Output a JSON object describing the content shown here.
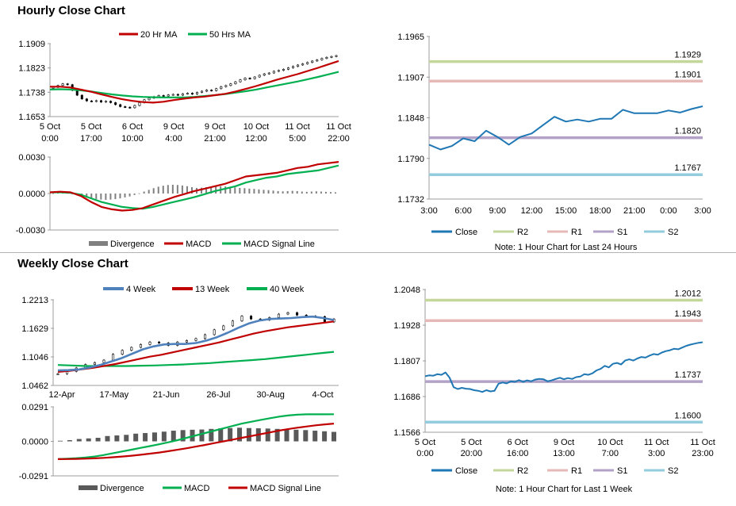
{
  "sections": {
    "hourly_title": "Hourly Close Chart",
    "weekly_title": "Weekly Close Chart"
  },
  "chart_data": [
    {
      "id": "hourly_price",
      "type": "candlestick",
      "title": "",
      "y_ticks": [
        "1.1909",
        "1.1823",
        "1.1738",
        "1.1653"
      ],
      "ylim": [
        1.1653,
        1.1909
      ],
      "x_tick_labels": [
        [
          "5 Oct",
          "0:00"
        ],
        [
          "5 Oct",
          "17:00"
        ],
        [
          "6 Oct",
          "10:00"
        ],
        [
          "9 Oct",
          "4:00"
        ],
        [
          "9 Oct",
          "21:00"
        ],
        [
          "10 Oct",
          "12:00"
        ],
        [
          "11 Oct",
          "5:00"
        ],
        [
          "11 Oct",
          "22:00"
        ]
      ],
      "legend": [
        "20 Hr MA",
        "50 Hrs MA"
      ],
      "colors": {
        "ma_short": "#c00000",
        "ma_long": "#00b050",
        "candle": "#000000"
      },
      "close": [
        1.1756,
        1.1762,
        1.1768,
        1.1765,
        1.1745,
        1.1728,
        1.1715,
        1.1708,
        1.1706,
        1.1709,
        1.1704,
        1.1707,
        1.1702,
        1.1695,
        1.1688,
        1.1686,
        1.1684,
        1.1692,
        1.1702,
        1.1712,
        1.1718,
        1.1723,
        1.1727,
        1.1725,
        1.1729,
        1.1731,
        1.1728,
        1.1733,
        1.1735,
        1.1732,
        1.1738,
        1.1742,
        1.1746,
        1.1744,
        1.1751,
        1.1758,
        1.1762,
        1.1768,
        1.1775,
        1.1782,
        1.1788,
        1.1786,
        1.1792,
        1.1798,
        1.1803,
        1.1806,
        1.1812,
        1.1815,
        1.1819,
        1.1824,
        1.1829,
        1.1834,
        1.1838,
        1.1843,
        1.1848,
        1.1852,
        1.1857,
        1.1861,
        1.1864,
        1.1867
      ],
      "series": [
        {
          "name": "20 Hr MA",
          "values": [
            1.1758,
            1.1758,
            1.1755,
            1.1748,
            1.174,
            1.1731,
            1.1722,
            1.1714,
            1.1708,
            1.1704,
            1.1702,
            1.1705,
            1.1711,
            1.1716,
            1.172,
            1.1723,
            1.1728,
            1.1733,
            1.1741,
            1.175,
            1.176,
            1.1771,
            1.1782,
            1.1792,
            1.1802,
            1.1813,
            1.1824,
            1.1836,
            1.1848
          ]
        },
        {
          "name": "50 Hrs MA",
          "values": [
            1.1748,
            1.1749,
            1.1748,
            1.1745,
            1.1741,
            1.1736,
            1.1731,
            1.1727,
            1.1724,
            1.1722,
            1.1721,
            1.172,
            1.172,
            1.172,
            1.1722,
            1.1725,
            1.1728,
            1.1732,
            1.1737,
            1.1742,
            1.1748,
            1.1755,
            1.1762,
            1.1769,
            1.1776,
            1.1784,
            1.1792,
            1.1801,
            1.181
          ]
        }
      ]
    },
    {
      "id": "hourly_macd",
      "type": "line",
      "y_ticks": [
        "0.0030",
        "0.0000",
        "-0.0030"
      ],
      "ylim": [
        -0.003,
        0.003
      ],
      "legend": [
        "Divergence",
        "MACD",
        "MACD Signal Line"
      ],
      "colors": {
        "divergence": "#808080",
        "macd": "#c00000",
        "signal": "#00b050"
      },
      "divergence": [
        2e-05,
        5e-05,
        6e-05,
        4e-05,
        -5e-05,
        -0.00015,
        -0.00025,
        -0.00034,
        -0.0004,
        -0.00045,
        -0.0005,
        -0.00052,
        -0.0005,
        -0.00046,
        -0.0004,
        -0.00032,
        -0.00024,
        -0.00012,
        2e-05,
        0.00016,
        0.0003,
        0.00044,
        0.00056,
        0.00064,
        0.0007,
        0.00072,
        0.0007,
        0.00066,
        0.0006,
        0.00052,
        0.00046,
        0.00048,
        0.00052,
        0.00056,
        0.00058,
        0.0006,
        0.00058,
        0.00054,
        0.0005,
        0.00046,
        0.00044,
        0.0004,
        0.00038,
        0.00034,
        0.0003,
        0.00028,
        0.00024,
        0.0002,
        0.00018,
        0.0002,
        0.00022,
        0.0002,
        0.00016,
        0.00014,
        0.00016,
        0.00018,
        0.00016,
        0.00014,
        0.00012,
        0.0001
      ],
      "series": [
        {
          "name": "MACD",
          "values": [
            0.0001,
            0.00015,
            0.0001,
            -0.0002,
            -0.0007,
            -0.0011,
            -0.0013,
            -0.0014,
            -0.00135,
            -0.0012,
            -0.0009,
            -0.0006,
            -0.0003,
            -5e-05,
            0.0002,
            0.0004,
            0.0006,
            0.0008,
            0.0011,
            0.0014,
            0.0015,
            0.0016,
            0.0017,
            0.0019,
            0.0021,
            0.0022,
            0.0024,
            0.0025,
            0.0026
          ]
        },
        {
          "name": "MACD Signal Line",
          "values": [
            0.0001,
            0.0001,
            5e-05,
            -0.0001,
            -0.0004,
            -0.0007,
            -0.0009,
            -0.0011,
            -0.0012,
            -0.00125,
            -0.0011,
            -0.0009,
            -0.0007,
            -0.0005,
            -0.0003,
            -5e-05,
            0.0002,
            0.0004,
            0.0006,
            0.0009,
            0.0011,
            0.0013,
            0.0014,
            0.0016,
            0.0017,
            0.0018,
            0.0019,
            0.0021,
            0.0023
          ]
        }
      ]
    },
    {
      "id": "hourly_levels",
      "type": "line",
      "y_ticks": [
        "1.1965",
        "1.1907",
        "1.1848",
        "1.1790",
        "1.1732"
      ],
      "ylim": [
        1.1732,
        1.1965
      ],
      "x_ticks": [
        "3:00",
        "6:00",
        "9:00",
        "12:00",
        "15:00",
        "18:00",
        "21:00",
        "0:00",
        "3:00"
      ],
      "legend": [
        "Close",
        "R2",
        "R1",
        "S1",
        "S2"
      ],
      "note": "Note: 1 Hour Chart for Last 24 Hours",
      "colors": {
        "close": "#1f77b4",
        "R2": "#c4d79b",
        "R1": "#e6b9b8",
        "S1": "#b3a2c7",
        "S2": "#93cddd"
      },
      "levels": {
        "R2": 1.1929,
        "R1": 1.1901,
        "S1": 1.182,
        "S2": 1.1767
      },
      "level_labels": {
        "R2": "1.1929",
        "R1": "1.1901",
        "S1": "1.1820",
        "S2": "1.1767"
      },
      "series": [
        {
          "name": "Close",
          "values": [
            1.181,
            1.1803,
            1.1808,
            1.1819,
            1.1815,
            1.183,
            1.1821,
            1.181,
            1.1821,
            1.1826,
            1.1838,
            1.185,
            1.1843,
            1.1846,
            1.1843,
            1.1847,
            1.1847,
            1.186,
            1.1855,
            1.1855,
            1.1855,
            1.1859,
            1.1856,
            1.1861,
            1.1865
          ]
        }
      ]
    },
    {
      "id": "weekly_price",
      "type": "candlestick",
      "y_ticks": [
        "1.2213",
        "1.1629",
        "1.1046",
        "1.0462"
      ],
      "ylim": [
        1.0462,
        1.2213
      ],
      "x_ticks": [
        "12-Apr",
        "17-May",
        "21-Jun",
        "26-Jul",
        "30-Aug",
        "4-Oct"
      ],
      "legend": [
        "4 Week",
        "13 Week",
        "40 Week"
      ],
      "colors": {
        "w4": "#4f81bd",
        "w13": "#c00000",
        "w40": "#00b050",
        "candle": "#000000"
      },
      "close": [
        1.07,
        1.075,
        1.082,
        1.089,
        1.093,
        1.098,
        1.11,
        1.118,
        1.124,
        1.13,
        1.135,
        1.133,
        1.128,
        1.135,
        1.138,
        1.142,
        1.15,
        1.16,
        1.168,
        1.178,
        1.188,
        1.182,
        1.18,
        1.185,
        1.192,
        1.195,
        1.19,
        1.188,
        1.187,
        1.176,
        1.182
      ],
      "series": [
        {
          "name": "4 Week",
          "values": [
            1.077,
            1.0775,
            1.079,
            1.083,
            1.088,
            1.095,
            1.102,
            1.111,
            1.12,
            1.126,
            1.13,
            1.131,
            1.131,
            1.133,
            1.138,
            1.145,
            1.154,
            1.164,
            1.173,
            1.179,
            1.182,
            1.183,
            1.184,
            1.186,
            1.187,
            1.184,
            1.18
          ]
        },
        {
          "name": "13 Week",
          "values": [
            1.074,
            1.076,
            1.079,
            1.082,
            1.086,
            1.09,
            1.095,
            1.1,
            1.105,
            1.109,
            1.114,
            1.119,
            1.124,
            1.129,
            1.134,
            1.14,
            1.146,
            1.152,
            1.157,
            1.161,
            1.165,
            1.168,
            1.171,
            1.174,
            1.177
          ]
        },
        {
          "name": "40 Week",
          "values": [
            1.088,
            1.087,
            1.086,
            1.086,
            1.086,
            1.086,
            1.0865,
            1.087,
            1.088,
            1.089,
            1.0905,
            1.092,
            1.094,
            1.096,
            1.098,
            1.1,
            1.103,
            1.106,
            1.109,
            1.112,
            1.115
          ]
        }
      ]
    },
    {
      "id": "weekly_macd",
      "type": "line",
      "y_ticks": [
        "0.0291",
        "0.0000",
        "-0.0291"
      ],
      "ylim": [
        -0.0291,
        0.0291
      ],
      "legend": [
        "Divergence",
        "MACD",
        "MACD Signal Line"
      ],
      "colors": {
        "divergence": "#595959",
        "macd": "#00b050",
        "signal": "#c00000"
      },
      "divergence": [
        0.0005,
        0.001,
        0.002,
        0.0025,
        0.003,
        0.0045,
        0.005,
        0.0055,
        0.0065,
        0.007,
        0.0075,
        0.0082,
        0.009,
        0.0095,
        0.0098,
        0.01,
        0.0105,
        0.011,
        0.0112,
        0.0115,
        0.0112,
        0.011,
        0.0108,
        0.0105,
        0.0102,
        0.0098,
        0.0095,
        0.009,
        0.0085,
        0.008
      ],
      "series": [
        {
          "name": "MACD",
          "values": [
            -0.015,
            -0.0146,
            -0.0142,
            -0.0136,
            -0.0128,
            -0.0115,
            -0.01,
            -0.0085,
            -0.007,
            -0.0055,
            -0.004,
            -0.0025,
            -0.0008,
            0.001,
            0.003,
            0.005,
            0.007,
            0.009,
            0.011,
            0.013,
            0.015,
            0.0165,
            0.018,
            0.0195,
            0.0208,
            0.0218,
            0.0225,
            0.0228,
            0.0228,
            0.0228,
            0.0229
          ]
        },
        {
          "name": "MACD Signal Line",
          "values": [
            -0.015,
            -0.0149,
            -0.0148,
            -0.0146,
            -0.0143,
            -0.0139,
            -0.0134,
            -0.0128,
            -0.0121,
            -0.0113,
            -0.0104,
            -0.0094,
            -0.0083,
            -0.0071,
            -0.0058,
            -0.0044,
            -0.003,
            -0.0015,
            0.0,
            0.0015,
            0.003,
            0.0045,
            0.006,
            0.0075,
            0.009,
            0.0103,
            0.0115,
            0.0125,
            0.0135,
            0.0143,
            0.015
          ]
        }
      ]
    },
    {
      "id": "weekly_levels",
      "type": "line",
      "y_ticks": [
        "1.2048",
        "1.1928",
        "1.1807",
        "1.1686",
        "1.1566"
      ],
      "ylim": [
        1.1566,
        1.2048
      ],
      "x_tick_labels": [
        [
          "5 Oct",
          "0:00"
        ],
        [
          "5 Oct",
          "20:00"
        ],
        [
          "6 Oct",
          "16:00"
        ],
        [
          "9 Oct",
          "13:00"
        ],
        [
          "10 Oct",
          "7:00"
        ],
        [
          "11 Oct",
          "3:00"
        ],
        [
          "11 Oct",
          "23:00"
        ]
      ],
      "legend": [
        "Close",
        "R2",
        "R1",
        "S1",
        "S2"
      ],
      "note": "Note: 1 Hour Chart for Last 1 Week",
      "colors": {
        "close": "#1f77b4",
        "R2": "#c4d79b",
        "R1": "#e6b9b8",
        "S1": "#b3a2c7",
        "S2": "#93cddd"
      },
      "levels": {
        "R2": 1.2012,
        "R1": 1.1943,
        "S1": 1.1737,
        "S2": 1.16
      },
      "level_labels": {
        "R2": "1.2012",
        "R1": "1.1943",
        "S1": "1.1737",
        "S2": "1.1600"
      },
      "series": [
        {
          "name": "Close",
          "values": [
            1.1755,
            1.1758,
            1.1757,
            1.1762,
            1.176,
            1.1768,
            1.175,
            1.1718,
            1.1712,
            1.1716,
            1.1713,
            1.1712,
            1.1708,
            1.1706,
            1.1702,
            1.1708,
            1.1704,
            1.1706,
            1.173,
            1.1734,
            1.1731,
            1.1738,
            1.1736,
            1.1742,
            1.1736,
            1.1741,
            1.1738,
            1.1744,
            1.1746,
            1.1745,
            1.1738,
            1.1741,
            1.1746,
            1.175,
            1.1745,
            1.1749,
            1.1746,
            1.1752,
            1.1754,
            1.1762,
            1.176,
            1.1765,
            1.1775,
            1.178,
            1.179,
            1.1785,
            1.1797,
            1.18,
            1.1795,
            1.1808,
            1.1812,
            1.1808,
            1.1815,
            1.182,
            1.1818,
            1.1825,
            1.183,
            1.1828,
            1.1835,
            1.184,
            1.1843,
            1.1848,
            1.1846,
            1.1852,
            1.1858,
            1.1862,
            1.1865,
            1.1868,
            1.187
          ]
        }
      ]
    }
  ]
}
